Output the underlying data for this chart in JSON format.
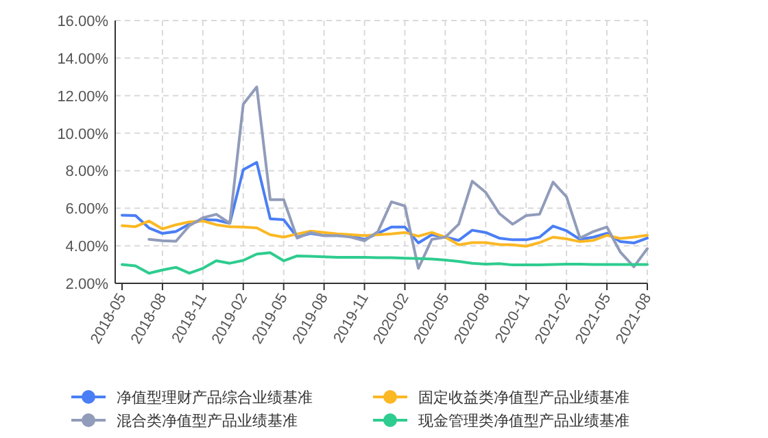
{
  "chart_data": {
    "type": "line",
    "categories": [
      "2018-05",
      null,
      null,
      "2018-08",
      null,
      null,
      "2018-11",
      null,
      null,
      "2019-02",
      null,
      null,
      "2019-05",
      null,
      null,
      "2019-08",
      null,
      null,
      "2019-11",
      null,
      null,
      "2020-02",
      null,
      null,
      "2020-05",
      null,
      null,
      "2020-08",
      null,
      null,
      "2020-11",
      null,
      null,
      "2021-02",
      null,
      null,
      "2021-05",
      null,
      null,
      "2021-08"
    ],
    "series": [
      {
        "name": "净值型理财产品综合业绩基准",
        "color": "#4a7ef5",
        "values": [
          5.63,
          5.61,
          4.95,
          4.66,
          4.76,
          5.15,
          5.39,
          5.37,
          5.2,
          8.05,
          8.44,
          5.44,
          5.39,
          4.46,
          4.66,
          4.54,
          4.54,
          4.51,
          4.34,
          4.66,
          5.0,
          5.0,
          4.15,
          4.59,
          4.46,
          4.29,
          4.83,
          4.71,
          4.41,
          4.32,
          4.32,
          4.46,
          5.05,
          4.8,
          4.34,
          4.46,
          4.66,
          4.22,
          4.15,
          4.41
        ]
      },
      {
        "name": "固定收益类净值型产品业绩基准",
        "color": "#fbb824",
        "values": [
          5.07,
          5.02,
          5.32,
          4.9,
          5.12,
          5.27,
          5.32,
          5.12,
          5.02,
          5.0,
          4.95,
          4.59,
          4.46,
          4.63,
          4.78,
          4.71,
          4.63,
          4.59,
          4.54,
          4.59,
          4.63,
          4.71,
          4.51,
          4.71,
          4.46,
          4.05,
          4.17,
          4.17,
          4.07,
          4.05,
          3.98,
          4.17,
          4.46,
          4.37,
          4.22,
          4.29,
          4.56,
          4.39,
          4.46,
          4.56
        ]
      },
      {
        "name": "混合类净值型产品业绩基准",
        "color": "#919cba",
        "values": [
          null,
          null,
          4.34,
          4.27,
          4.24,
          5.07,
          5.49,
          5.68,
          5.2,
          11.54,
          12.46,
          6.46,
          6.46,
          4.41,
          4.71,
          4.54,
          4.54,
          4.46,
          4.27,
          4.76,
          6.34,
          6.12,
          2.8,
          4.34,
          4.46,
          5.15,
          7.44,
          6.85,
          5.73,
          5.15,
          5.61,
          5.68,
          7.39,
          6.61,
          4.41,
          4.76,
          5.0,
          3.66,
          2.88,
          3.85
        ]
      },
      {
        "name": "现金管理类净值型产品业绩基准",
        "color": "#2ecc8f",
        "values": [
          3.0,
          2.93,
          2.54,
          2.71,
          2.85,
          2.54,
          2.8,
          3.2,
          3.07,
          3.22,
          3.56,
          3.63,
          3.2,
          3.46,
          3.44,
          3.41,
          3.39,
          3.39,
          3.39,
          3.37,
          3.37,
          3.34,
          3.32,
          3.29,
          3.24,
          3.17,
          3.07,
          3.02,
          3.05,
          2.98,
          2.98,
          2.98,
          3.0,
          3.02,
          3.02,
          3.0,
          3.0,
          3.0,
          3.0,
          3.0
        ]
      }
    ],
    "ylim": [
      2,
      16
    ],
    "yticks": [
      {
        "value": 2,
        "label": "2.00%"
      },
      {
        "value": 4,
        "label": "4.00%"
      },
      {
        "value": 6,
        "label": "6.00%"
      },
      {
        "value": 8,
        "label": "8.00%"
      },
      {
        "value": 10,
        "label": "10.00%"
      },
      {
        "value": 12,
        "label": "12.00%"
      },
      {
        "value": 14,
        "label": "14.00%"
      },
      {
        "value": 16,
        "label": "16.00%"
      }
    ],
    "grid": true,
    "legend": "bottom",
    "marker": "none",
    "line_style": "solid"
  }
}
